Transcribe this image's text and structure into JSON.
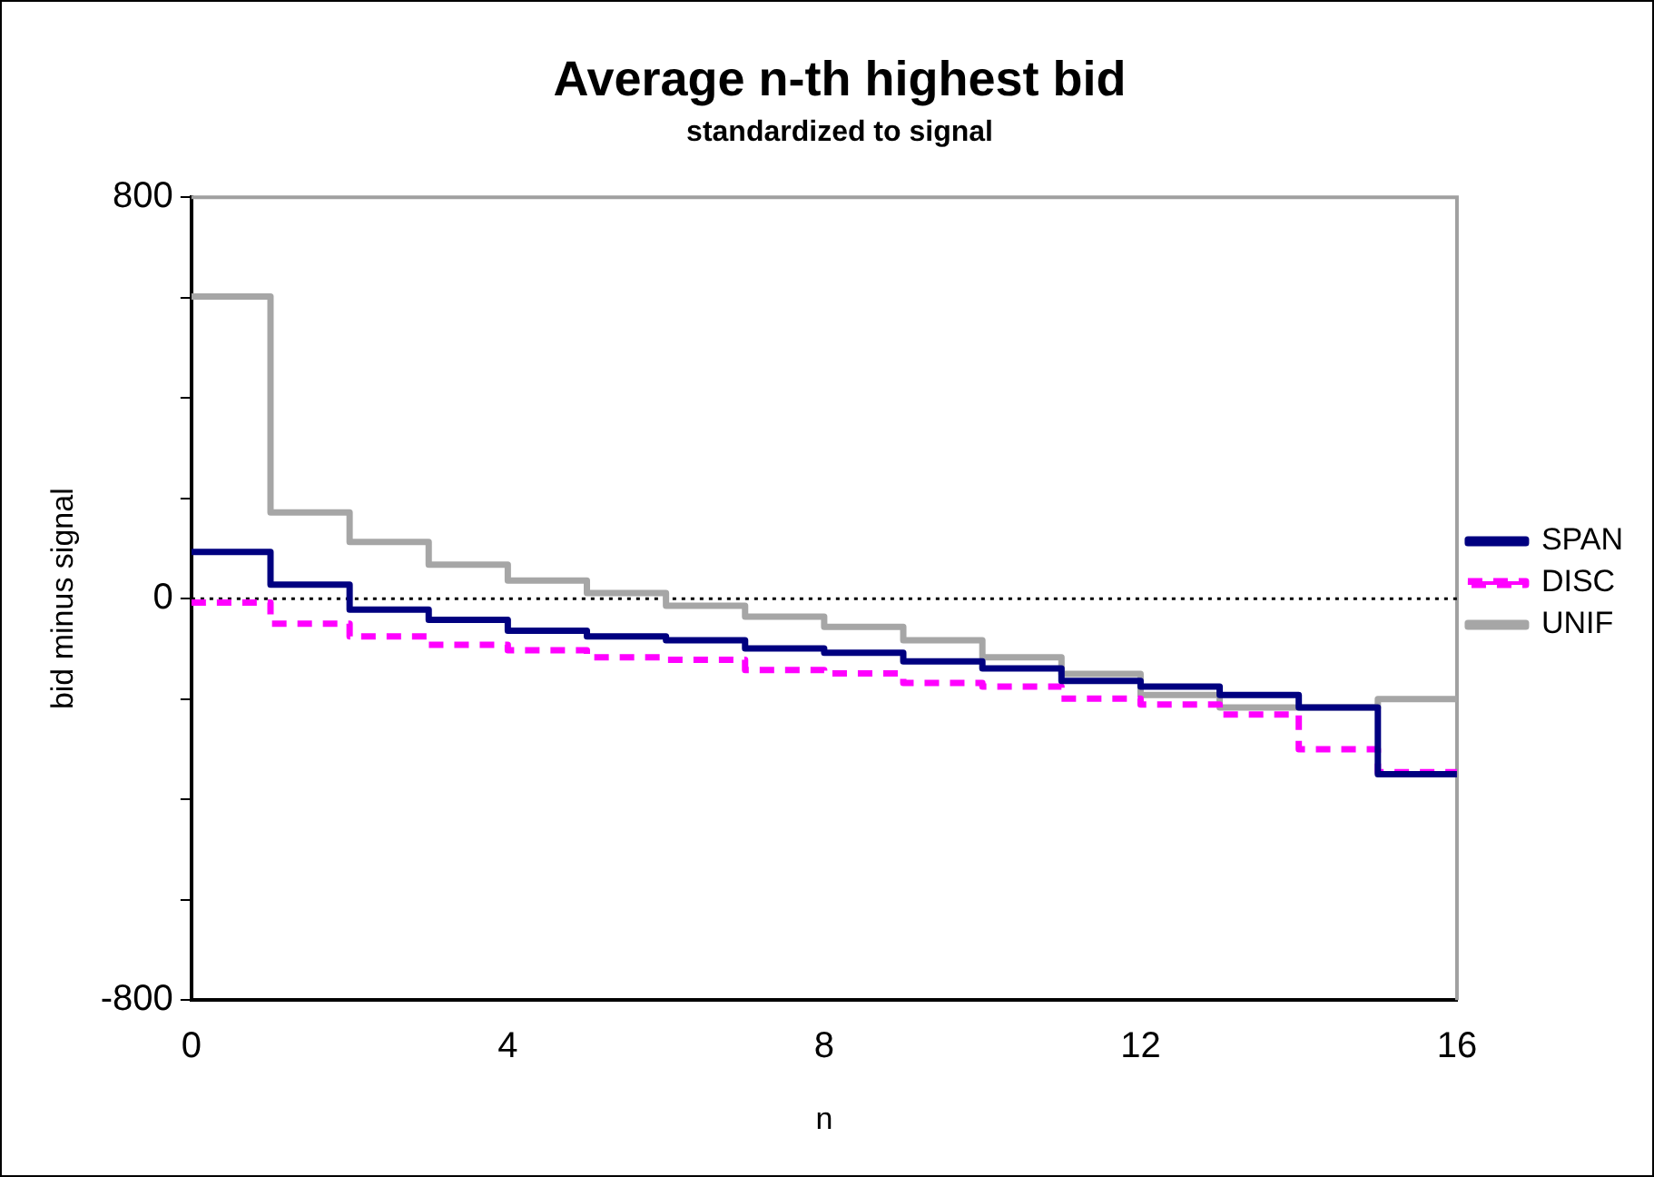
{
  "chart_data": {
    "type": "step",
    "title": "Average n-th highest bid",
    "subtitle": "standardized to signal",
    "xlabel": "n",
    "ylabel": "bid minus signal",
    "x": [
      0,
      1,
      2,
      3,
      4,
      5,
      6,
      7,
      8,
      9,
      10,
      11,
      12,
      13,
      14,
      15,
      16
    ],
    "series": [
      {
        "name": "SPAN",
        "color": "#000080",
        "line_style": "solid",
        "values": [
          93,
          28,
          -22,
          -42,
          -64,
          -75,
          -83,
          -99,
          -108,
          -125,
          -139,
          -164,
          -175,
          -192,
          -217,
          -350,
          -350
        ]
      },
      {
        "name": "DISC",
        "color": "#ff00ff",
        "line_style": "dashed",
        "values": [
          -8,
          -50,
          -75,
          -92,
          -103,
          -117,
          -122,
          -142,
          -149,
          -168,
          -175,
          -199,
          -211,
          -231,
          -300,
          -346,
          -346
        ]
      },
      {
        "name": "UNIF",
        "color": "#a6a6a6",
        "line_style": "solid",
        "values": [
          602,
          172,
          113,
          68,
          36,
          11,
          -14,
          -36,
          -56,
          -83,
          -117,
          -150,
          -192,
          -217,
          -217,
          -200,
          -200
        ]
      }
    ],
    "xlim": [
      0,
      16
    ],
    "xticks": [
      0,
      4,
      8,
      12,
      16
    ],
    "ylim": [
      -800,
      800
    ],
    "yticks": [
      -800,
      {
        "value": -600,
        "label": null
      },
      {
        "value": -400,
        "label": null
      },
      {
        "value": -200,
        "label": null
      },
      0,
      {
        "value": 200,
        "label": null
      },
      {
        "value": 400,
        "label": null
      },
      {
        "value": 600,
        "label": null
      },
      800
    ],
    "ref_lines": [
      {
        "axis": "y",
        "value": 0,
        "color": "#000000",
        "line_style": "dotted"
      }
    ],
    "grid": false,
    "legend": "right",
    "marker": "none"
  }
}
